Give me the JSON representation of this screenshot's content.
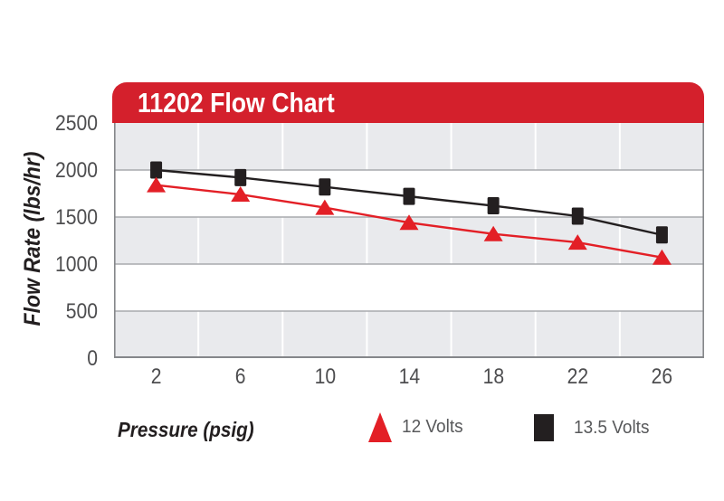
{
  "title": "11202 Flow Chart",
  "colors": {
    "banner_red": "#d4202c",
    "series_red": "#e31f26",
    "series_black": "#231f20",
    "band_gray": "#e9eaed",
    "band_white": "#ffffff",
    "gridline_gray": "#a8aaad",
    "vertical_gridline_white": "#ffffff",
    "axis_border": "#85878a",
    "tick_text": "#4d4d4f",
    "legend_text": "#58595b",
    "title_text": "#ffffff"
  },
  "chart_data": {
    "type": "line",
    "title": "11202 Flow Chart",
    "xlabel": "Pressure (psig)",
    "ylabel": "Flow Rate (lbs/hr)",
    "categories": [
      "2",
      "6",
      "10",
      "14",
      "18",
      "22",
      "26"
    ],
    "yticks": [
      0,
      500,
      1000,
      1500,
      2000,
      2500
    ],
    "ylim": [
      0,
      2500
    ],
    "grid": "horizontal gray gridlines every 500; alternating gray/white horizontal bands; white vertical category separators",
    "legend_position": "bottom",
    "series": [
      {
        "name": "12 Volts",
        "marker": "triangle",
        "color": "#e31f26",
        "values": [
          1840,
          1740,
          1600,
          1440,
          1320,
          1230,
          1070
        ]
      },
      {
        "name": "13.5 Volts",
        "marker": "square",
        "color": "#231f20",
        "values": [
          2000,
          1920,
          1820,
          1720,
          1620,
          1510,
          1310
        ]
      }
    ]
  }
}
